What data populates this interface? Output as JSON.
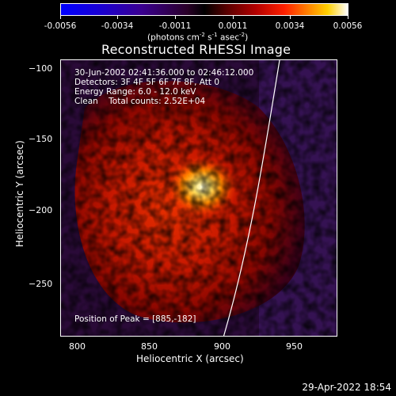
{
  "colorbar": {
    "tick_labels": [
      "-0.0056",
      "-0.0034",
      "-0.0011",
      "0.0011",
      "0.0034",
      "0.0056"
    ],
    "units_prefix": "(photons cm",
    "units_exp1": "-2",
    "units_mid": " s",
    "units_exp2": "-1",
    "units_mid2": " asec",
    "units_exp3": "-2",
    "units_suffix": ")"
  },
  "plot": {
    "title": "Reconstructed RHESSI Image",
    "info": {
      "time_range": "30-Jun-2002 02:41:36.000 to 02:46:12.000",
      "detectors": "Detectors: 3F 4F 5F 6F 7F 8F, Att 0",
      "energy": "Energy Range: 6.0 - 12.0 keV",
      "clean": "Clean    Total counts: 2.52E+04"
    },
    "peak_text": "Position of Peak = [885,-182]",
    "xlabel": "Heliocentric X (arcsec)",
    "ylabel": "Heliocentric Y (arcsec)",
    "xticks": [
      "800",
      "850",
      "900",
      "950"
    ],
    "yticks": [
      "−100",
      "−150",
      "−200",
      "−250"
    ]
  },
  "chart_data": {
    "type": "heatmap",
    "title": "Reconstructed RHESSI Image",
    "xlabel": "Heliocentric X (arcsec)",
    "ylabel": "Heliocentric Y (arcsec)",
    "xlim": [
      788,
      980
    ],
    "ylim": [
      -285,
      -93
    ],
    "colorbar_range": [
      -0.0056,
      0.0056
    ],
    "peak": {
      "x": 885,
      "y": -182
    }
  },
  "footer": {
    "timestamp": "29-Apr-2022 18:54"
  },
  "colors": {
    "background": "#000000",
    "text": "#ffffff",
    "peak": "#ffffc0"
  }
}
